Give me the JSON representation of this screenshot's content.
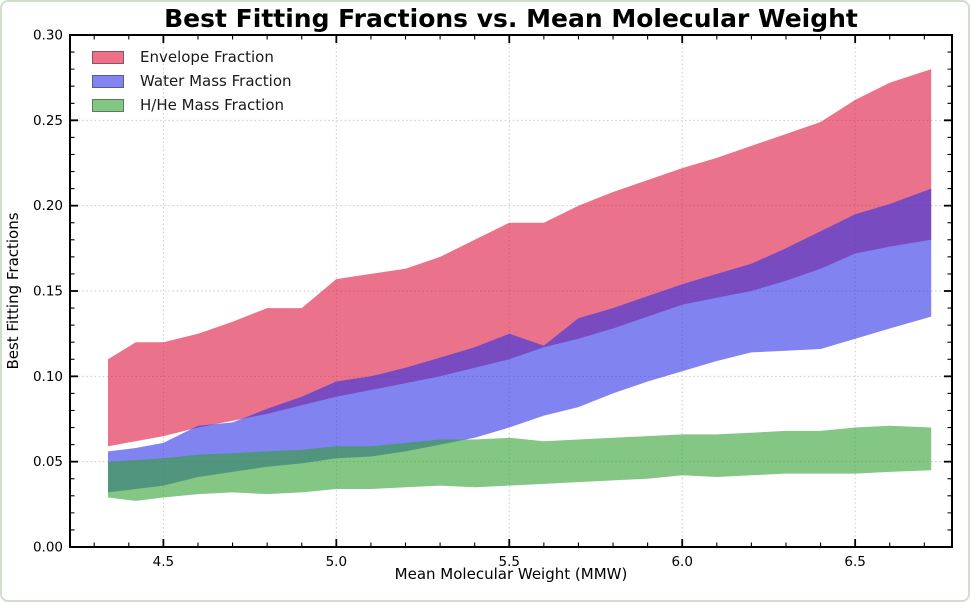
{
  "figure": {
    "title": "Best Fitting Fractions vs. Mean Molecular Weight"
  },
  "legend": {
    "position": "upper-left",
    "items": [
      {
        "label": "Envelope Fraction",
        "swatch_color": "#ef7189"
      },
      {
        "label": "Water Mass Fraction",
        "swatch_color": "#8184f0"
      },
      {
        "label": "H/He Mass Fraction",
        "swatch_color": "#84c684"
      }
    ]
  },
  "colors": {
    "figure_border": "#cfdfca",
    "grid": "#c9c9c9",
    "envelope_fill": "rgba(220,20,60,0.6)",
    "water_fill": "rgba(45,50,230,0.6)",
    "hhe_fill": "rgba(50,160,50,0.6)"
  },
  "chart_data": {
    "type": "area",
    "title": "Best Fitting Fractions vs. Mean Molecular Weight",
    "xlabel": "Mean Molecular Weight (MMW)",
    "ylabel": "Best Fitting Fractions",
    "xlim": [
      4.23,
      6.78
    ],
    "ylim": [
      0.0,
      0.3
    ],
    "grid": true,
    "grid_style": "dotted",
    "legend_position": "upper-left",
    "x_ticks": {
      "values": [
        4.5,
        5.0,
        5.5,
        6.0,
        6.5
      ],
      "labels": [
        "4.5",
        "5.0",
        "5.5",
        "6.0",
        "6.5"
      ]
    },
    "y_ticks": {
      "values": [
        0.0,
        0.05,
        0.1,
        0.15,
        0.2,
        0.25,
        0.3
      ],
      "labels": [
        "0.00",
        "0.05",
        "0.10",
        "0.15",
        "0.20",
        "0.25",
        "0.30"
      ]
    },
    "minor_x_step": 0.1,
    "minor_y_step": 0.01,
    "x": [
      4.34,
      4.42,
      4.5,
      4.6,
      4.7,
      4.8,
      4.9,
      5.0,
      5.1,
      5.2,
      5.3,
      5.4,
      5.5,
      5.6,
      5.7,
      5.8,
      5.9,
      6.0,
      6.1,
      6.2,
      6.3,
      6.4,
      6.5,
      6.6,
      6.72
    ],
    "series": [
      {
        "name": "Envelope Fraction",
        "fill": "rgba(220,20,60,0.6)",
        "upper": [
          0.11,
          0.12,
          0.12,
          0.125,
          0.132,
          0.14,
          0.14,
          0.157,
          0.16,
          0.163,
          0.17,
          0.18,
          0.19,
          0.19,
          0.2,
          0.208,
          0.215,
          0.222,
          0.228,
          0.235,
          0.242,
          0.249,
          0.262,
          0.272,
          0.28
        ],
        "lower": [
          0.059,
          0.062,
          0.065,
          0.07,
          0.074,
          0.078,
          0.083,
          0.088,
          0.092,
          0.096,
          0.1,
          0.105,
          0.11,
          0.117,
          0.122,
          0.128,
          0.135,
          0.142,
          0.146,
          0.15,
          0.156,
          0.163,
          0.172,
          0.176,
          0.18
        ]
      },
      {
        "name": "Water Mass Fraction",
        "fill": "rgba(45,50,230,0.6)",
        "upper": [
          0.056,
          0.058,
          0.061,
          0.071,
          0.073,
          0.081,
          0.088,
          0.097,
          0.1,
          0.105,
          0.111,
          0.117,
          0.125,
          0.118,
          0.134,
          0.14,
          0.147,
          0.154,
          0.16,
          0.166,
          0.175,
          0.185,
          0.195,
          0.201,
          0.21
        ],
        "lower": [
          0.032,
          0.034,
          0.036,
          0.041,
          0.044,
          0.047,
          0.049,
          0.052,
          0.053,
          0.056,
          0.06,
          0.064,
          0.07,
          0.077,
          0.082,
          0.09,
          0.097,
          0.103,
          0.109,
          0.114,
          0.115,
          0.116,
          0.122,
          0.128,
          0.135
        ]
      },
      {
        "name": "H/He Mass Fraction",
        "fill": "rgba(50,160,50,0.6)",
        "upper": [
          0.05,
          0.051,
          0.052,
          0.054,
          0.055,
          0.056,
          0.057,
          0.059,
          0.059,
          0.061,
          0.063,
          0.063,
          0.064,
          0.062,
          0.063,
          0.064,
          0.065,
          0.066,
          0.066,
          0.067,
          0.068,
          0.068,
          0.07,
          0.071,
          0.07
        ],
        "lower": [
          0.029,
          0.027,
          0.029,
          0.031,
          0.032,
          0.031,
          0.032,
          0.034,
          0.034,
          0.035,
          0.036,
          0.035,
          0.036,
          0.037,
          0.038,
          0.039,
          0.04,
          0.042,
          0.041,
          0.042,
          0.043,
          0.043,
          0.043,
          0.044,
          0.045
        ]
      }
    ]
  }
}
